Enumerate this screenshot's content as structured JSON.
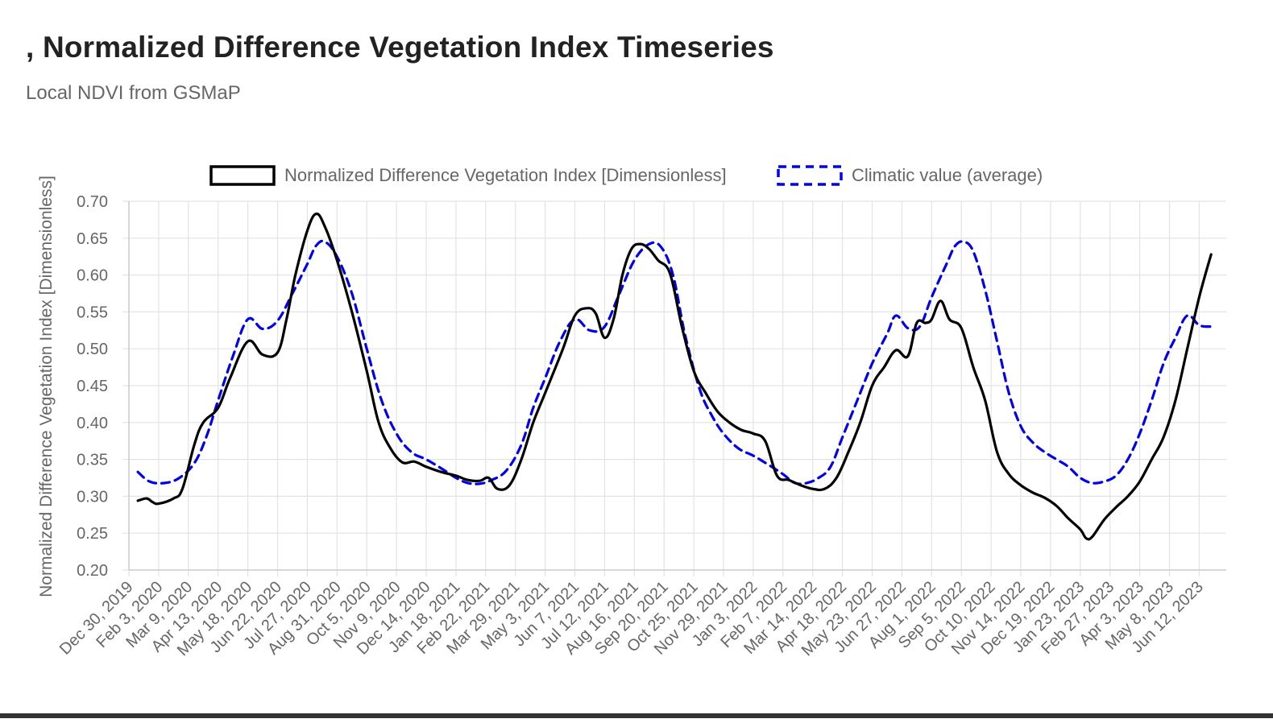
{
  "header": {
    "title": ", Normalized Difference Vegetation Index Timeseries",
    "subtitle": "Local NDVI from GSMaP"
  },
  "colors": {
    "ndvi_line": "#000000",
    "climatic_line": "#0000ee",
    "grid": "#e3e3e3",
    "axis_text": "#666666"
  },
  "chart_data": {
    "type": "line",
    "title": "",
    "xlabel": "",
    "ylabel": "Normalized Difference Vegetation Index [Dimensionless]",
    "ylim": [
      0.2,
      0.7
    ],
    "yticks": [
      "0.70",
      "0.65",
      "0.60",
      "0.55",
      "0.50",
      "0.45",
      "0.40",
      "0.35",
      "0.30",
      "0.25",
      "0.20"
    ],
    "grid": true,
    "legend_position": "top",
    "categories": [
      "Dec 30, 2019",
      "Feb 3, 2020",
      "Mar 9, 2020",
      "Apr 13, 2020",
      "May 18, 2020",
      "Jun 22, 2020",
      "Jul 27, 2020",
      "Aug 31, 2020",
      "Oct 5, 2020",
      "Nov 9, 2020",
      "Dec 14, 2020",
      "Jan 18, 2021",
      "Feb 22, 2021",
      "Mar 29, 2021",
      "May 3, 2021",
      "Jun 7, 2021",
      "Jul 12, 2021",
      "Aug 16, 2021",
      "Sep 20, 2021",
      "Oct 25, 2021",
      "Nov 29, 2021",
      "Jan 3, 2022",
      "Feb 7, 2022",
      "Mar 14, 2022",
      "Apr 18, 2022",
      "May 23, 2022",
      "Jun 27, 2022",
      "Aug 1, 2022",
      "Sep 5, 2022",
      "Oct 10, 2022",
      "Nov 14, 2022",
      "Dec 19, 2022",
      "Jan 23, 2023",
      "Feb 27, 2023",
      "Apr 3, 2023",
      "May 8, 2023",
      "Jun 12, 2023"
    ],
    "series": [
      {
        "name": "Normalized Difference Vegetation Index [Dimensionless]",
        "style": "solid",
        "points": [
          [
            0.3,
            0.294
          ],
          [
            0.6,
            0.297
          ],
          [
            0.8,
            0.292
          ],
          [
            1.0,
            0.29
          ],
          [
            1.5,
            0.297
          ],
          [
            1.8,
            0.31
          ],
          [
            2.2,
            0.37
          ],
          [
            2.5,
            0.4
          ],
          [
            3.0,
            0.42
          ],
          [
            3.4,
            0.46
          ],
          [
            4.0,
            0.51
          ],
          [
            4.5,
            0.492
          ],
          [
            5.0,
            0.495
          ],
          [
            5.3,
            0.54
          ],
          [
            5.6,
            0.6
          ],
          [
            6.0,
            0.66
          ],
          [
            6.3,
            0.683
          ],
          [
            6.6,
            0.665
          ],
          [
            7.0,
            0.62
          ],
          [
            7.5,
            0.55
          ],
          [
            8.0,
            0.47
          ],
          [
            8.4,
            0.4
          ],
          [
            8.8,
            0.365
          ],
          [
            9.2,
            0.346
          ],
          [
            9.6,
            0.347
          ],
          [
            10.0,
            0.34
          ],
          [
            10.5,
            0.333
          ],
          [
            11.0,
            0.328
          ],
          [
            11.4,
            0.322
          ],
          [
            11.8,
            0.321
          ],
          [
            12.1,
            0.325
          ],
          [
            12.4,
            0.31
          ],
          [
            12.8,
            0.315
          ],
          [
            13.2,
            0.35
          ],
          [
            13.6,
            0.4
          ],
          [
            14.0,
            0.44
          ],
          [
            14.6,
            0.5
          ],
          [
            15.0,
            0.545
          ],
          [
            15.4,
            0.555
          ],
          [
            15.7,
            0.548
          ],
          [
            16.0,
            0.515
          ],
          [
            16.3,
            0.54
          ],
          [
            16.6,
            0.6
          ],
          [
            16.9,
            0.635
          ],
          [
            17.2,
            0.642
          ],
          [
            17.5,
            0.635
          ],
          [
            17.8,
            0.62
          ],
          [
            18.2,
            0.602
          ],
          [
            18.6,
            0.53
          ],
          [
            19.0,
            0.47
          ],
          [
            19.4,
            0.44
          ],
          [
            19.8,
            0.415
          ],
          [
            20.2,
            0.4
          ],
          [
            20.6,
            0.39
          ],
          [
            21.0,
            0.385
          ],
          [
            21.4,
            0.375
          ],
          [
            21.8,
            0.328
          ],
          [
            22.2,
            0.322
          ],
          [
            22.6,
            0.315
          ],
          [
            23.0,
            0.31
          ],
          [
            23.4,
            0.31
          ],
          [
            23.8,
            0.325
          ],
          [
            24.2,
            0.36
          ],
          [
            24.6,
            0.4
          ],
          [
            25.0,
            0.45
          ],
          [
            25.4,
            0.475
          ],
          [
            25.8,
            0.498
          ],
          [
            26.2,
            0.49
          ],
          [
            26.5,
            0.535
          ],
          [
            26.8,
            0.535
          ],
          [
            27.0,
            0.54
          ],
          [
            27.3,
            0.565
          ],
          [
            27.6,
            0.54
          ],
          [
            28.0,
            0.528
          ],
          [
            28.4,
            0.475
          ],
          [
            28.8,
            0.43
          ],
          [
            29.2,
            0.36
          ],
          [
            29.6,
            0.33
          ],
          [
            30.0,
            0.315
          ],
          [
            30.4,
            0.305
          ],
          [
            30.8,
            0.298
          ],
          [
            31.2,
            0.287
          ],
          [
            31.6,
            0.27
          ],
          [
            32.0,
            0.255
          ],
          [
            32.2,
            0.243
          ],
          [
            32.4,
            0.245
          ],
          [
            32.8,
            0.268
          ],
          [
            33.2,
            0.285
          ],
          [
            33.6,
            0.3
          ],
          [
            34.0,
            0.32
          ],
          [
            34.4,
            0.35
          ],
          [
            34.8,
            0.38
          ],
          [
            35.2,
            0.43
          ],
          [
            35.6,
            0.5
          ],
          [
            36.0,
            0.57
          ],
          [
            36.4,
            0.628
          ]
        ]
      },
      {
        "name": "Climatic value (average)",
        "style": "dashed",
        "points": [
          [
            0.3,
            0.333
          ],
          [
            0.7,
            0.32
          ],
          [
            1.2,
            0.318
          ],
          [
            1.7,
            0.325
          ],
          [
            2.2,
            0.345
          ],
          [
            2.6,
            0.38
          ],
          [
            3.0,
            0.43
          ],
          [
            3.5,
            0.49
          ],
          [
            4.0,
            0.54
          ],
          [
            4.5,
            0.527
          ],
          [
            5.0,
            0.538
          ],
          [
            5.5,
            0.575
          ],
          [
            6.0,
            0.615
          ],
          [
            6.3,
            0.64
          ],
          [
            6.6,
            0.645
          ],
          [
            7.0,
            0.625
          ],
          [
            7.5,
            0.575
          ],
          [
            8.0,
            0.5
          ],
          [
            8.5,
            0.43
          ],
          [
            9.0,
            0.385
          ],
          [
            9.5,
            0.36
          ],
          [
            10.0,
            0.35
          ],
          [
            10.5,
            0.338
          ],
          [
            11.0,
            0.325
          ],
          [
            11.4,
            0.318
          ],
          [
            11.8,
            0.317
          ],
          [
            12.2,
            0.322
          ],
          [
            12.7,
            0.335
          ],
          [
            13.2,
            0.37
          ],
          [
            13.6,
            0.42
          ],
          [
            14.0,
            0.46
          ],
          [
            14.5,
            0.51
          ],
          [
            15.0,
            0.54
          ],
          [
            15.5,
            0.525
          ],
          [
            16.0,
            0.53
          ],
          [
            16.5,
            0.575
          ],
          [
            17.0,
            0.62
          ],
          [
            17.5,
            0.642
          ],
          [
            17.9,
            0.638
          ],
          [
            18.3,
            0.6
          ],
          [
            18.7,
            0.52
          ],
          [
            19.2,
            0.445
          ],
          [
            19.6,
            0.41
          ],
          [
            20.0,
            0.385
          ],
          [
            20.5,
            0.365
          ],
          [
            21.0,
            0.355
          ],
          [
            21.5,
            0.343
          ],
          [
            22.0,
            0.33
          ],
          [
            22.4,
            0.318
          ],
          [
            22.8,
            0.318
          ],
          [
            23.2,
            0.325
          ],
          [
            23.6,
            0.34
          ],
          [
            24.0,
            0.38
          ],
          [
            24.5,
            0.43
          ],
          [
            25.0,
            0.48
          ],
          [
            25.5,
            0.52
          ],
          [
            25.8,
            0.545
          ],
          [
            26.2,
            0.528
          ],
          [
            26.6,
            0.53
          ],
          [
            27.0,
            0.57
          ],
          [
            27.5,
            0.615
          ],
          [
            27.8,
            0.64
          ],
          [
            28.1,
            0.645
          ],
          [
            28.4,
            0.632
          ],
          [
            28.8,
            0.58
          ],
          [
            29.2,
            0.51
          ],
          [
            29.6,
            0.44
          ],
          [
            30.0,
            0.395
          ],
          [
            30.4,
            0.373
          ],
          [
            30.8,
            0.36
          ],
          [
            31.2,
            0.35
          ],
          [
            31.6,
            0.34
          ],
          [
            32.0,
            0.325
          ],
          [
            32.4,
            0.318
          ],
          [
            32.8,
            0.32
          ],
          [
            33.2,
            0.328
          ],
          [
            33.6,
            0.35
          ],
          [
            34.0,
            0.385
          ],
          [
            34.4,
            0.43
          ],
          [
            34.8,
            0.48
          ],
          [
            35.2,
            0.515
          ],
          [
            35.6,
            0.545
          ],
          [
            36.0,
            0.532
          ],
          [
            36.4,
            0.53
          ]
        ]
      }
    ]
  }
}
